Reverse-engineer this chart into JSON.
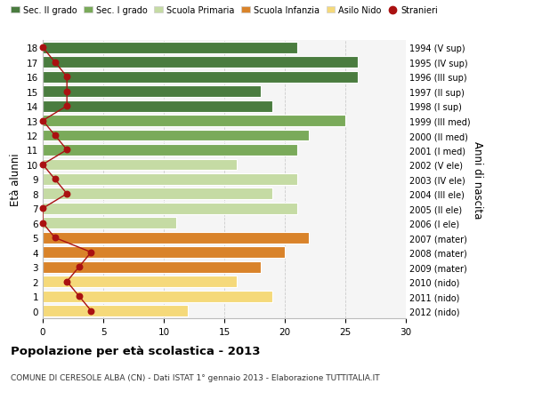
{
  "ages": [
    18,
    17,
    16,
    15,
    14,
    13,
    12,
    11,
    10,
    9,
    8,
    7,
    6,
    5,
    4,
    3,
    2,
    1,
    0
  ],
  "right_labels": [
    "1994 (V sup)",
    "1995 (IV sup)",
    "1996 (III sup)",
    "1997 (II sup)",
    "1998 (I sup)",
    "1999 (III med)",
    "2000 (II med)",
    "2001 (I med)",
    "2002 (V ele)",
    "2003 (IV ele)",
    "2004 (III ele)",
    "2005 (II ele)",
    "2006 (I ele)",
    "2007 (mater)",
    "2008 (mater)",
    "2009 (mater)",
    "2010 (nido)",
    "2011 (nido)",
    "2012 (nido)"
  ],
  "bar_values": [
    21,
    26,
    26,
    18,
    19,
    25,
    22,
    21,
    16,
    21,
    19,
    21,
    11,
    22,
    20,
    18,
    16,
    19,
    12
  ],
  "bar_colors": [
    "#4a7c3f",
    "#4a7c3f",
    "#4a7c3f",
    "#4a7c3f",
    "#4a7c3f",
    "#7aaa5a",
    "#7aaa5a",
    "#7aaa5a",
    "#c5dba4",
    "#c5dba4",
    "#c5dba4",
    "#c5dba4",
    "#c5dba4",
    "#d9832a",
    "#d9832a",
    "#d9832a",
    "#f5d97a",
    "#f5d97a",
    "#f5d97a"
  ],
  "stranieri_values": [
    0,
    1,
    2,
    2,
    2,
    0,
    1,
    2,
    0,
    1,
    2,
    0,
    0,
    1,
    4,
    3,
    2,
    3,
    4
  ],
  "stranieri_color": "#aa1111",
  "legend_labels": [
    "Sec. II grado",
    "Sec. I grado",
    "Scuola Primaria",
    "Scuola Infanzia",
    "Asilo Nido",
    "Stranieri"
  ],
  "legend_colors": [
    "#4a7c3f",
    "#7aaa5a",
    "#c5dba4",
    "#d9832a",
    "#f5d97a",
    "#aa1111"
  ],
  "ylabel_left": "Età alunni",
  "ylabel_right": "Anni di nascita",
  "title": "Popolazione per età scolastica - 2013",
  "subtitle": "COMUNE DI CERESOLE ALBA (CN) - Dati ISTAT 1° gennaio 2013 - Elaborazione TUTTITALIA.IT",
  "xlim": [
    0,
    30
  ],
  "xticks": [
    0,
    5,
    10,
    15,
    20,
    25,
    30
  ],
  "bg_color": "#f5f5f5",
  "grid_color": "#cccccc"
}
